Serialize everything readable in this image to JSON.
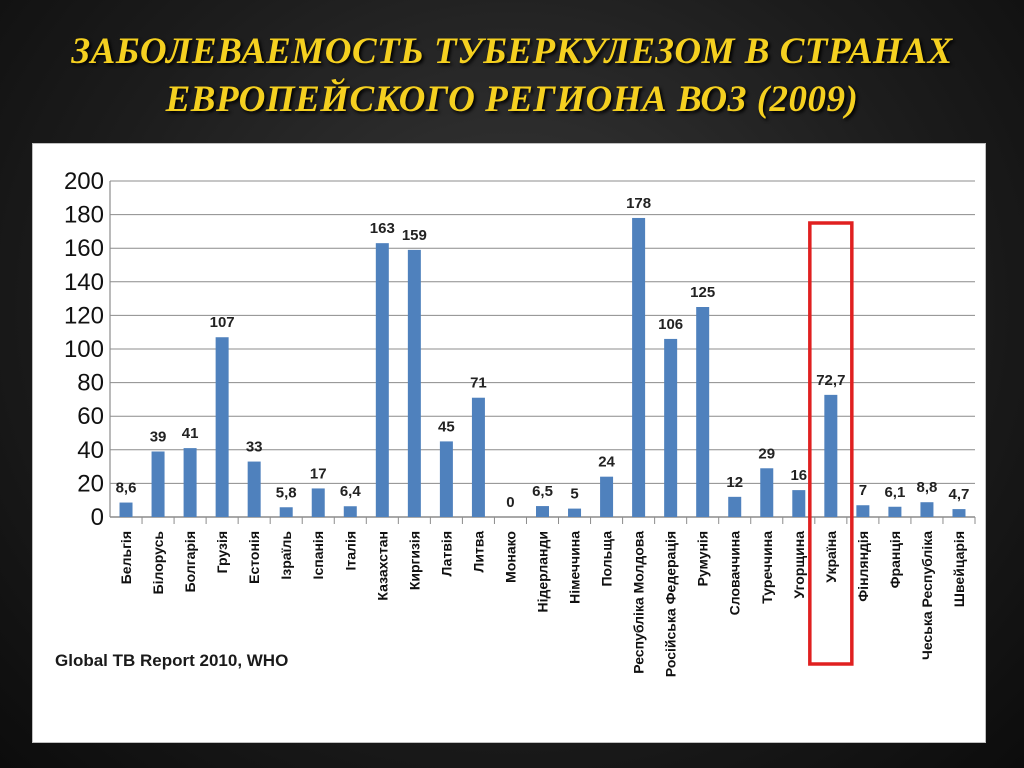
{
  "title": {
    "line1": "ЗАБОЛЕВАЕМОСТЬ  ТУБЕРКУЛЕЗОМ В СТРАНАХ",
    "line2": "ЕВРОПЕЙСКОГО  РЕГИОНА   ВОЗ (2009)"
  },
  "source": "Global TB Report 2010, WHO",
  "colors": {
    "bar": "#4f81bd",
    "highlight": "#e02020",
    "title": "#f5d020",
    "grid": "#8c8c8c"
  },
  "chart_data": {
    "type": "bar",
    "categories": [
      "Бельгія",
      "Білорусь",
      "Болгарія",
      "Грузія",
      "Естонія",
      "Ізраїль",
      "Іспанія",
      "Італія",
      "Казахстан",
      "Киргизія",
      "Латвія",
      "Литва",
      "Монако",
      "Нідерланди",
      "Німеччина",
      "Польща",
      "Республіка Молдова",
      "Російська Федерація",
      "Румунія",
      "Словаччина",
      "Туреччина",
      "Угорщина",
      "Україна",
      "Фінляндія",
      "Франція",
      "Чеська Республіка",
      "Швейцарія"
    ],
    "values": [
      8.6,
      39,
      41,
      107,
      33,
      5.8,
      17,
      6.4,
      163,
      159,
      45,
      71,
      0,
      6.5,
      5,
      24,
      178,
      106,
      125,
      12,
      29,
      16,
      72.7,
      7,
      6.1,
      8.8,
      4.7
    ],
    "data_labels": [
      "8,6",
      "39",
      "41",
      "107",
      "33",
      "5,8",
      "17",
      "6,4",
      "163",
      "159",
      "45",
      "71",
      "0",
      "6,5",
      "5",
      "24",
      "178",
      "106",
      "125",
      "12",
      "29",
      "16",
      "72,7",
      "7",
      "6,1",
      "8,8",
      "4,7"
    ],
    "y_ticks": [
      "0",
      "20",
      "40",
      "60",
      "80",
      "100",
      "120",
      "140",
      "160",
      "180",
      "200"
    ],
    "ylim": [
      0,
      200
    ],
    "grid": true,
    "highlighted_category": "Україна"
  }
}
